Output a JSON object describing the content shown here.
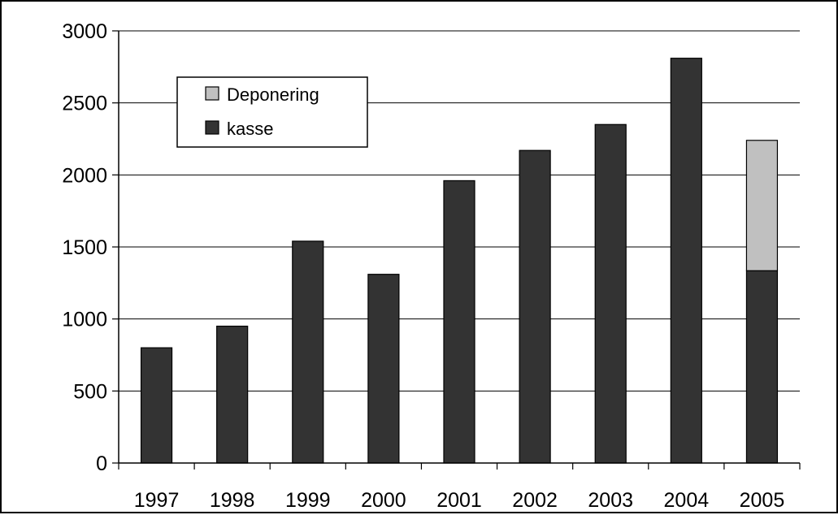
{
  "chart_data": {
    "type": "bar",
    "stacked": true,
    "categories": [
      "1997",
      "1998",
      "1999",
      "2000",
      "2001",
      "2002",
      "2003",
      "2004",
      "2005"
    ],
    "series": [
      {
        "name": "kasse",
        "values": [
          800,
          950,
          1540,
          1310,
          1960,
          2170,
          2350,
          2810,
          1335
        ],
        "color": "#333333"
      },
      {
        "name": "Deponering",
        "values": [
          0,
          0,
          0,
          0,
          0,
          0,
          0,
          0,
          905
        ],
        "color": "#c0c0c0"
      }
    ],
    "ylim": [
      0,
      3000
    ],
    "yticks": [
      0,
      500,
      1000,
      1500,
      2000,
      2500,
      3000
    ],
    "title": "",
    "xlabel": "",
    "ylabel": "",
    "grid": true,
    "legend_position": "top-left",
    "legend": [
      {
        "label": "Deponering",
        "color": "#c0c0c0"
      },
      {
        "label": "kasse",
        "color": "#333333"
      }
    ]
  }
}
